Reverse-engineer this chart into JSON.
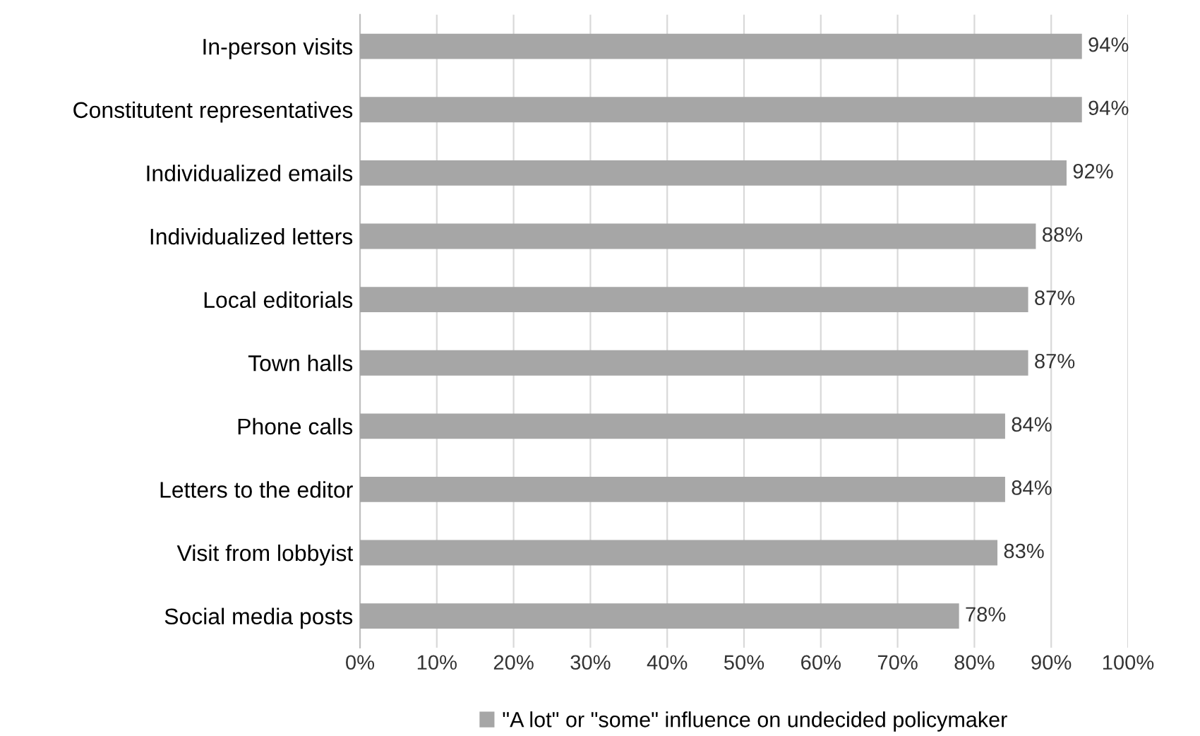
{
  "chart_data": {
    "type": "bar",
    "orientation": "horizontal",
    "categories": [
      "In-person visits",
      "Constitutent representatives",
      "Individualized emails",
      "Individualized letters",
      "Local editorials",
      "Town halls",
      "Phone calls",
      "Letters to the editor",
      "Visit from lobbyist",
      "Social media posts"
    ],
    "series": [
      {
        "name": "\"A lot\" or \"some\" influence on undecided policymaker",
        "color": "#a6a6a6",
        "values": [
          94,
          94,
          92,
          88,
          87,
          87,
          84,
          84,
          83,
          78
        ]
      }
    ],
    "value_labels": [
      "94%",
      "94%",
      "92%",
      "88%",
      "87%",
      "87%",
      "84%",
      "84%",
      "83%",
      "78%"
    ],
    "xlim": [
      0,
      100
    ],
    "xticks": [
      {
        "value": 0,
        "label": "0%"
      },
      {
        "value": 10,
        "label": "10%"
      },
      {
        "value": 20,
        "label": "20%"
      },
      {
        "value": 30,
        "label": "30%"
      },
      {
        "value": 40,
        "label": "40%"
      },
      {
        "value": 50,
        "label": "50%"
      },
      {
        "value": 60,
        "label": "60%"
      },
      {
        "value": 70,
        "label": "70%"
      },
      {
        "value": 80,
        "label": "80%"
      },
      {
        "value": 90,
        "label": "90%"
      },
      {
        "value": 100,
        "label": "100%"
      }
    ],
    "grid": "x",
    "legend": "bottom"
  }
}
